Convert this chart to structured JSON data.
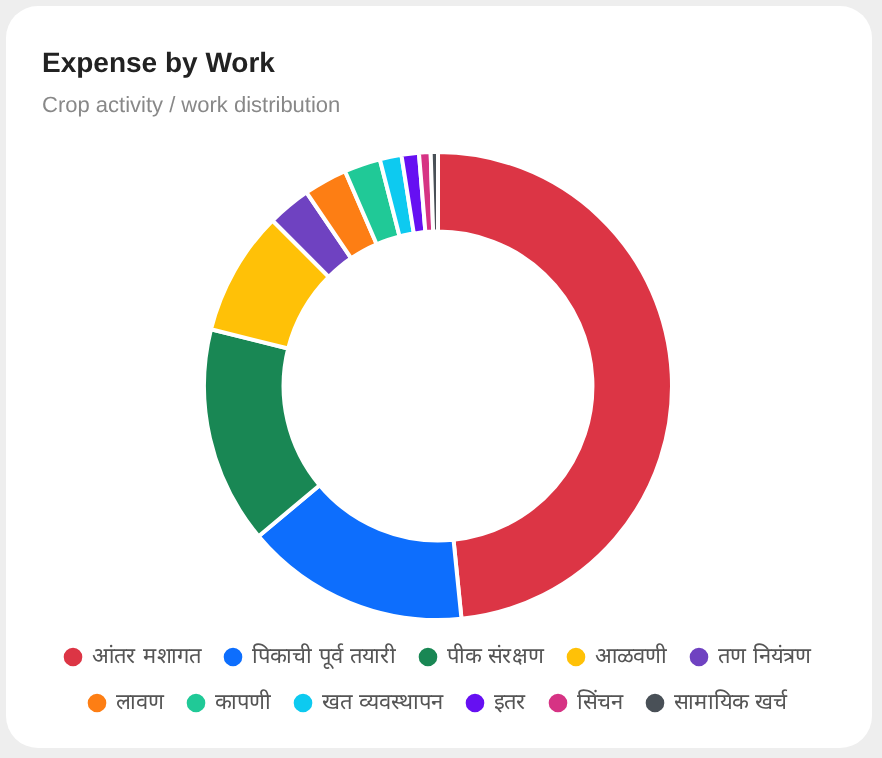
{
  "chart_data": {
    "type": "donut",
    "title": "Expense by Work",
    "subtitle": "Crop activity / work distribution",
    "categories": [
      "आंतर मशागत",
      "पिकाची पूर्व तयारी",
      "पीक संरक्षण",
      "आळवणी",
      "तण नियंत्रण",
      "लावण",
      "कापणी",
      "खत व्यवस्थापन",
      "इतर",
      "सिंचन",
      "सामायिक खर्च"
    ],
    "values": [
      48.4,
      15.5,
      15,
      8.6,
      3,
      3,
      2.5,
      1.5,
      1.2,
      0.8,
      0.5
    ],
    "colors": [
      "#dc3545",
      "#0d6efd",
      "#198754",
      "#ffc107",
      "#6f42c1",
      "#fd7e14",
      "#20c997",
      "#0dcaf0",
      "#6610f2",
      "#d63384",
      "#495057"
    ],
    "legend": "bottom"
  }
}
